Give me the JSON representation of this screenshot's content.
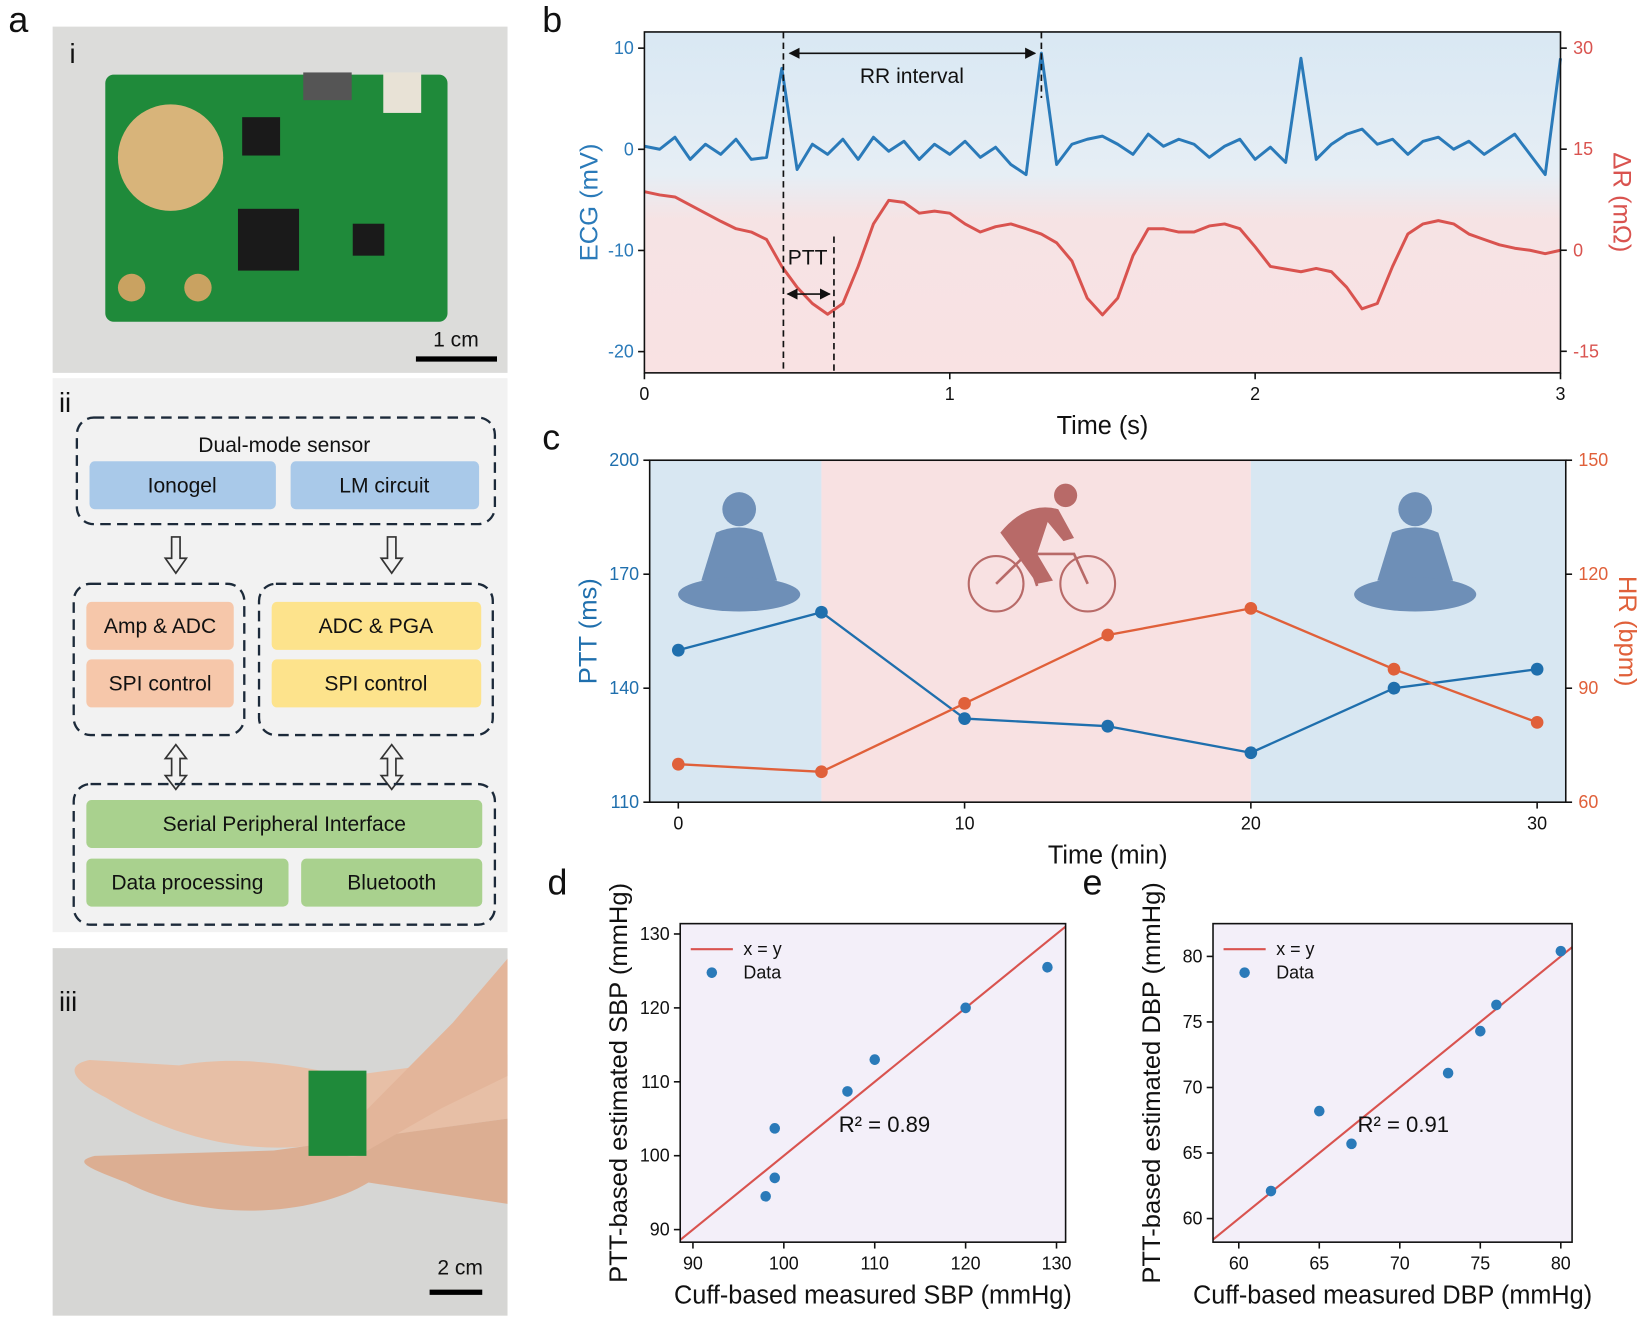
{
  "figure": {
    "panel_labels": [
      "a",
      "b",
      "c",
      "d",
      "e"
    ],
    "panel_a": {
      "photo_labels": [
        "i",
        "ii",
        "iii"
      ],
      "scale_bars": [
        "1 cm",
        "2 cm"
      ],
      "diagram": {
        "sensor_title": "Dual-mode sensor",
        "sensor_blocks": [
          "Ionogel",
          "LM circuit"
        ],
        "left_blocks": [
          "Amp & ADC",
          "SPI control"
        ],
        "right_blocks": [
          "ADC & PGA",
          "SPI control"
        ],
        "interface": "Serial Peripheral Interface",
        "outputs": [
          "Data processing",
          "Bluetooth"
        ]
      }
    }
  },
  "chart_data": [
    {
      "type": "line",
      "xlabel": "Time (s)",
      "ylabel": "ECG (mV)",
      "y2label": "ΔR (mΩ)",
      "annotations": [
        "RR interval",
        "PTT"
      ],
      "x": [
        0,
        0.05,
        0.1,
        0.15,
        0.2,
        0.25,
        0.3,
        0.35,
        0.4,
        0.45,
        0.5,
        0.55,
        0.6,
        0.65,
        0.7,
        0.75,
        0.8,
        0.85,
        0.9,
        0.95,
        1,
        1.05,
        1.1,
        1.15,
        1.2,
        1.25,
        1.3,
        1.35,
        1.4,
        1.45,
        1.5,
        1.55,
        1.6,
        1.65,
        1.7,
        1.75,
        1.8,
        1.85,
        1.9,
        1.95,
        2,
        2.05,
        2.1,
        2.15,
        2.2,
        2.25,
        2.3,
        2.35,
        2.4,
        2.45,
        2.5,
        2.55,
        2.6,
        2.65,
        2.7,
        2.75,
        2.8,
        2.85,
        2.9,
        2.95,
        3
      ],
      "xlim": [
        0,
        3
      ],
      "xticks": [
        0,
        1,
        2,
        3
      ],
      "ylim": [
        -22.1,
        11.6
      ],
      "yticks": [
        -20,
        -10,
        0,
        10
      ],
      "y2lim": [
        -18.2,
        32.4
      ],
      "y2ticks": [
        -15,
        0,
        15,
        30
      ],
      "series": [
        {
          "color": "#2a7ab9",
          "values": [
            0.3,
            0,
            1.2,
            -1,
            0.5,
            -0.5,
            1,
            -1,
            -0.8,
            8,
            -2,
            0.5,
            -0.5,
            1,
            -1,
            1.2,
            -0.2,
            0.8,
            -1,
            0.5,
            -0.5,
            0.8,
            -0.8,
            0.2,
            -1.5,
            -2.5,
            9.5,
            -1.5,
            0.5,
            1,
            1.3,
            0.5,
            -0.5,
            1.5,
            0.3,
            1,
            0.5,
            -0.8,
            0.3,
            1,
            -1,
            0.2,
            -1.3,
            9,
            -1,
            0.5,
            1.5,
            2,
            0.5,
            1,
            -0.5,
            0.8,
            1.2,
            0,
            0.8,
            -0.5,
            0.5,
            1.5,
            -0.5,
            -2.5,
            9
          ]
        },
        {
          "color": "#d9534f",
          "axis": "y2",
          "values": [
            8.7,
            8.2,
            7.9,
            6.7,
            5.5,
            4.3,
            3.2,
            2.7,
            1.6,
            -2.4,
            -5.5,
            -7.9,
            -9.5,
            -7.9,
            -2.4,
            3.9,
            7.4,
            7.1,
            5.5,
            5.8,
            5.5,
            3.9,
            2.7,
            3.5,
            3.9,
            3.2,
            2.4,
            1.1,
            -1.6,
            -7.1,
            -9.6,
            -7.1,
            -0.8,
            3.2,
            3.2,
            2.7,
            2.7,
            3.6,
            3.9,
            3.2,
            0.5,
            -2.4,
            -2.8,
            -3.2,
            -2.7,
            -3.2,
            -5.5,
            -8.7,
            -7.9,
            -2.4,
            2.4,
            3.9,
            4.4,
            3.9,
            2.4,
            1.6,
            0.8,
            0.3,
            0,
            -0.5,
            0
          ]
        }
      ]
    },
    {
      "type": "line",
      "xlabel": "Time (min)",
      "ylabel": "PTT (ms)",
      "y2label": "HR (bpm)",
      "x": [
        0,
        5,
        10,
        15,
        20,
        25,
        30
      ],
      "xlim": [
        -1,
        31
      ],
      "xticks": [
        0,
        10,
        20,
        30
      ],
      "ylim": [
        110,
        200
      ],
      "yticks": [
        110,
        140,
        170,
        200
      ],
      "y2lim": [
        60,
        150
      ],
      "y2ticks": [
        60,
        90,
        120,
        150
      ],
      "shaded_regions": [
        {
          "x": [
            -1,
            5
          ],
          "color": "#d8e7f2"
        },
        {
          "x": [
            5,
            20
          ],
          "color": "#f8e1e2"
        },
        {
          "x": [
            20,
            31
          ],
          "color": "#d8e7f2"
        }
      ],
      "series": [
        {
          "color": "#1f6fad",
          "markers": true,
          "values": [
            150,
            160,
            132,
            130,
            123,
            140,
            145
          ]
        },
        {
          "color": "#e0603a",
          "markers": true,
          "axis": "y2",
          "values": [
            70,
            68,
            86,
            104,
            111,
            95,
            81
          ]
        }
      ]
    },
    {
      "type": "scatter",
      "xlabel": "Cuff-based measured SBP (mmHg)",
      "ylabel": "PTT-based estimated SBP (mmHg)",
      "annotation": "R² = 0.89",
      "xlim": [
        88.6,
        131
      ],
      "xticks": [
        90,
        100,
        110,
        120,
        130
      ],
      "ylim": [
        88.3,
        131.4
      ],
      "yticks": [
        90,
        100,
        110,
        120,
        130
      ],
      "series": [
        {
          "name": "x = y",
          "color": "#d9534f",
          "identity": true
        },
        {
          "name": "Data",
          "color": "#2a7ab9",
          "x": [
            98,
            99,
            99,
            107,
            110,
            120,
            129
          ],
          "values": [
            94.5,
            97,
            103.7,
            108.7,
            113,
            120,
            125.5
          ]
        }
      ]
    },
    {
      "type": "scatter",
      "xlabel": "Cuff-based measured DBP (mmHg)",
      "ylabel": "PTT-based estimated DBP (mmHg)",
      "annotation": "R² = 0.91",
      "xlim": [
        58.4,
        80.7
      ],
      "xticks": [
        60,
        65,
        70,
        75,
        80
      ],
      "ylim": [
        58.2,
        82.5
      ],
      "yticks": [
        60,
        65,
        70,
        75,
        80
      ],
      "series": [
        {
          "name": "x = y",
          "color": "#d9534f",
          "identity": true
        },
        {
          "name": "Data",
          "color": "#2a7ab9",
          "x": [
            62,
            65,
            67,
            73,
            75,
            76,
            80
          ],
          "values": [
            62.1,
            68.2,
            65.7,
            71.1,
            74.3,
            76.3,
            80.4
          ]
        }
      ]
    }
  ]
}
